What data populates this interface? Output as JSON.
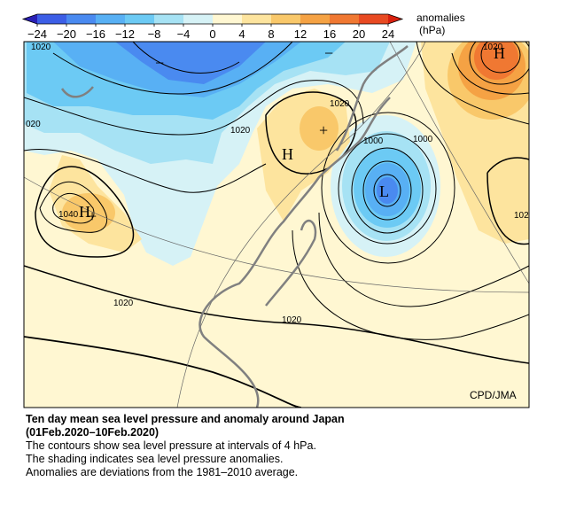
{
  "colorbar": {
    "ticks": [
      {
        "value": -24,
        "label": "−24"
      },
      {
        "value": -20,
        "label": "−20"
      },
      {
        "value": -16,
        "label": "−16"
      },
      {
        "value": -12,
        "label": "−12"
      },
      {
        "value": -8,
        "label": "−8"
      },
      {
        "value": -4,
        "label": "−4"
      },
      0,
      4,
      8,
      12,
      16,
      20,
      24
    ],
    "colors": [
      "#3c5ee6",
      "#4a8af0",
      "#58b0f4",
      "#6ccaf4",
      "#a6e2f4",
      "#d6f2f6",
      "#fff7d2",
      "#fde49e",
      "#f9c86a",
      "#f5a244",
      "#f07832",
      "#e84a22"
    ],
    "under": "#2a20b4",
    "over": "#d8200e",
    "title": "anomalies",
    "unit": "(hPa)"
  },
  "map": {
    "contour_labels": [
      "1020",
      "020",
      "1040",
      "1020",
      "1020",
      "1020",
      "1000",
      "1000",
      "1020",
      "1020",
      "102"
    ],
    "markers": [
      "H",
      "H",
      "L",
      "H",
      "−",
      "−",
      "+",
      "+"
    ],
    "credit": "CPD/JMA"
  },
  "caption": {
    "title": "Ten day mean sea level pressure and anomaly around Japan",
    "period": "(01Feb.2020–10Feb.2020)",
    "lines": [
      "The contours show sea level pressure at intervals of 4 hPa.",
      "The shading indicates sea level pressure anomalies.",
      "Anomalies are deviations from the 1981–2010 average."
    ]
  }
}
